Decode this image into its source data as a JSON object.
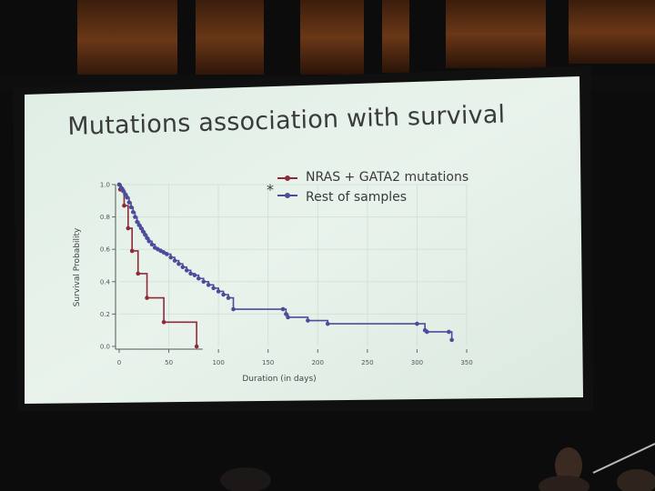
{
  "slide": {
    "title": "Mutations association with survival",
    "asterisk": "*"
  },
  "chart_data": {
    "type": "line",
    "step": true,
    "xlabel": "Duration (in days)",
    "ylabel": "Survival Probability",
    "xlim": [
      0,
      350
    ],
    "ylim": [
      0,
      1.0
    ],
    "x_ticks": [
      0,
      50,
      100,
      150,
      200,
      250,
      300,
      350
    ],
    "y_ticks": [
      0.0,
      0.2,
      0.4,
      0.6,
      0.8,
      1.0
    ],
    "y_tick_labels": [
      "0.0",
      "0.2",
      "0.4",
      "0.6",
      "0.8",
      "1.0"
    ],
    "grid": true,
    "legend_position": "top-right",
    "series": [
      {
        "name": "NRAS + GATA2 mutations",
        "color": "#8e2a3a",
        "x": [
          0,
          1,
          5,
          9,
          13,
          19,
          28,
          45,
          78
        ],
        "y": [
          1.0,
          0.97,
          0.87,
          0.73,
          0.59,
          0.45,
          0.3,
          0.15,
          0.0
        ]
      },
      {
        "name": "Rest of samples",
        "color": "#4d4c9c",
        "x": [
          0,
          2,
          4,
          6,
          8,
          10,
          12,
          14,
          16,
          18,
          20,
          22,
          24,
          26,
          28,
          30,
          33,
          36,
          39,
          42,
          45,
          48,
          52,
          56,
          60,
          64,
          68,
          72,
          76,
          80,
          85,
          90,
          95,
          100,
          105,
          110,
          115,
          165,
          168,
          170,
          190,
          210,
          300,
          308,
          310,
          332,
          335
        ],
        "y": [
          1.0,
          0.98,
          0.96,
          0.94,
          0.92,
          0.89,
          0.86,
          0.83,
          0.8,
          0.77,
          0.75,
          0.73,
          0.71,
          0.69,
          0.67,
          0.65,
          0.63,
          0.61,
          0.6,
          0.59,
          0.58,
          0.57,
          0.55,
          0.53,
          0.51,
          0.49,
          0.47,
          0.45,
          0.44,
          0.42,
          0.4,
          0.38,
          0.36,
          0.34,
          0.32,
          0.3,
          0.23,
          0.23,
          0.2,
          0.18,
          0.16,
          0.14,
          0.14,
          0.1,
          0.09,
          0.09,
          0.04
        ]
      }
    ]
  },
  "colors": {
    "slide_background": "#e7f1ea",
    "screen_frame": "#121212",
    "wood_panel": "#6e3a1b"
  }
}
